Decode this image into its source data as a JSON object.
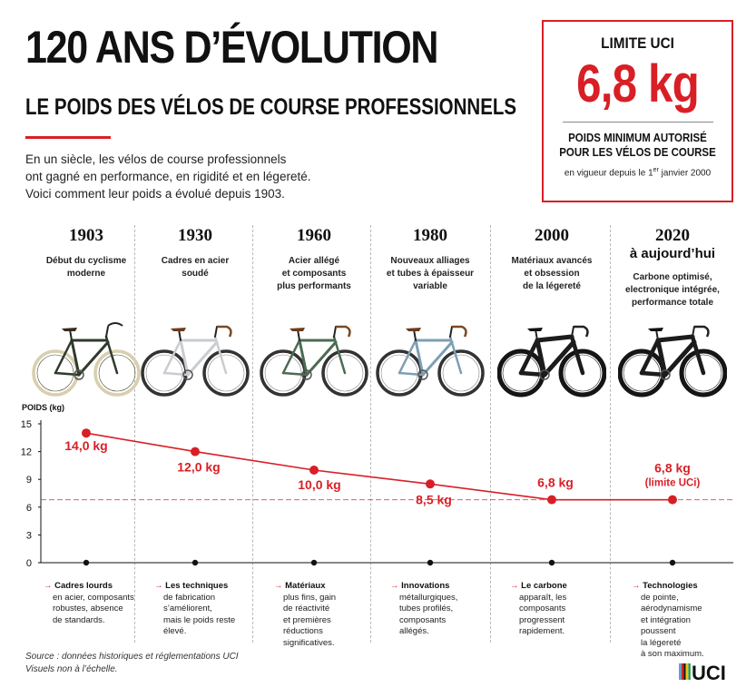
{
  "header": {
    "title": "120 ANS D’ÉVOLUTION",
    "subtitle": "LE POIDS DES VÉLOS DE COURSE PROFESSIONNELS",
    "intro": [
      "En un siècle, les vélos de course professionnels",
      "ont gagné en performance, en rigidité et en légereté.",
      "Voici comment leur poids a évolué depuis 1903."
    ]
  },
  "limit_box": {
    "title": "LIMITE UCI",
    "value": "6,8 kg",
    "desc_line1": "POIDS MINIMUM AUTORISÉ",
    "desc_line2": "POUR LES VÉLOS DE COURSE",
    "note_prefix": "en vigueur depuis le 1",
    "note_sup": "er",
    "note_suffix": " janvier 2000"
  },
  "eras": [
    {
      "year": "1903",
      "sub": "",
      "desc": [
        "Début du cyclisme",
        "moderne"
      ],
      "frame": "#2f3a2c",
      "tire": "#d8cfae",
      "wheel": "#4a4a3a"
    },
    {
      "year": "1930",
      "sub": "",
      "desc": [
        "Cadres en acier",
        "soudé"
      ],
      "frame": "#c9ccd0",
      "tire": "#333333",
      "wheel": "#888888"
    },
    {
      "year": "1960",
      "sub": "",
      "desc": [
        "Acier allégé",
        "et composants",
        "plus performants"
      ],
      "frame": "#4d6b52",
      "tire": "#333333",
      "wheel": "#888888"
    },
    {
      "year": "1980",
      "sub": "",
      "desc": [
        "Nouveaux alliages",
        "et tubes à épaisseur",
        "variable"
      ],
      "frame": "#7d9fb3",
      "tire": "#333333",
      "wheel": "#888888"
    },
    {
      "year": "2000",
      "sub": "",
      "desc": [
        "Matériaux avancés",
        "et obsession",
        "de la légereté"
      ],
      "frame": "#1c1c1c",
      "tire": "#151515",
      "wheel": "#2a2a2a"
    },
    {
      "year": "2020",
      "sub": "à aujourd’hui",
      "desc": [
        "Carbone optimisé,",
        "electronique intégrée,",
        "performance totale"
      ],
      "frame": "#1c1c1c",
      "tire": "#151515",
      "wheel": "#2a2a2a"
    }
  ],
  "chart_data": {
    "type": "line",
    "ylabel": "POIDS (kg)",
    "ylim": [
      0,
      15
    ],
    "yticks": [
      "0",
      "3",
      "6",
      "9",
      "12",
      "15"
    ],
    "x": [
      "1903",
      "1930",
      "1960",
      "1980",
      "2000",
      "2020"
    ],
    "values": [
      14.0,
      12.0,
      10.0,
      8.5,
      6.8,
      6.8
    ],
    "data_labels": [
      "14,0 kg",
      "12,0 kg",
      "10,0 kg",
      "8,5 kg",
      "6,8 kg",
      "6,8 kg"
    ],
    "extra_label": "(limite UCi)",
    "reference_line": 6.8,
    "color": "#d81f26"
  },
  "notes": [
    {
      "head": "Cadres lourds",
      "rest": [
        "en acier, composants",
        "robustes, absence",
        "de standards."
      ]
    },
    {
      "head": "Les techniques",
      "rest": [
        "de fabrication",
        "s’améliorent,",
        "mais le poids reste",
        "élevé."
      ]
    },
    {
      "head": "Matériaux",
      "rest": [
        "plus fins, gain",
        "de réactivité",
        "et premières",
        "réductions",
        "significatives."
      ]
    },
    {
      "head": "Innovations",
      "rest": [
        "métallurgiques,",
        "tubes profilés,",
        "composants",
        "allégés."
      ]
    },
    {
      "head": "Le carbone",
      "rest": [
        "apparaît, les",
        "composants",
        "progressent",
        "rapidement."
      ]
    },
    {
      "head": "Technologies",
      "rest": [
        "de pointe,",
        "aérodynamisme",
        "et intégration",
        "poussent",
        "la légereté",
        "à son maximum."
      ]
    }
  ],
  "footer": {
    "source": "Source : données historiques et réglementations UCI",
    "scale": "Visuels non à l’échelle."
  },
  "logo_text": "UCI"
}
